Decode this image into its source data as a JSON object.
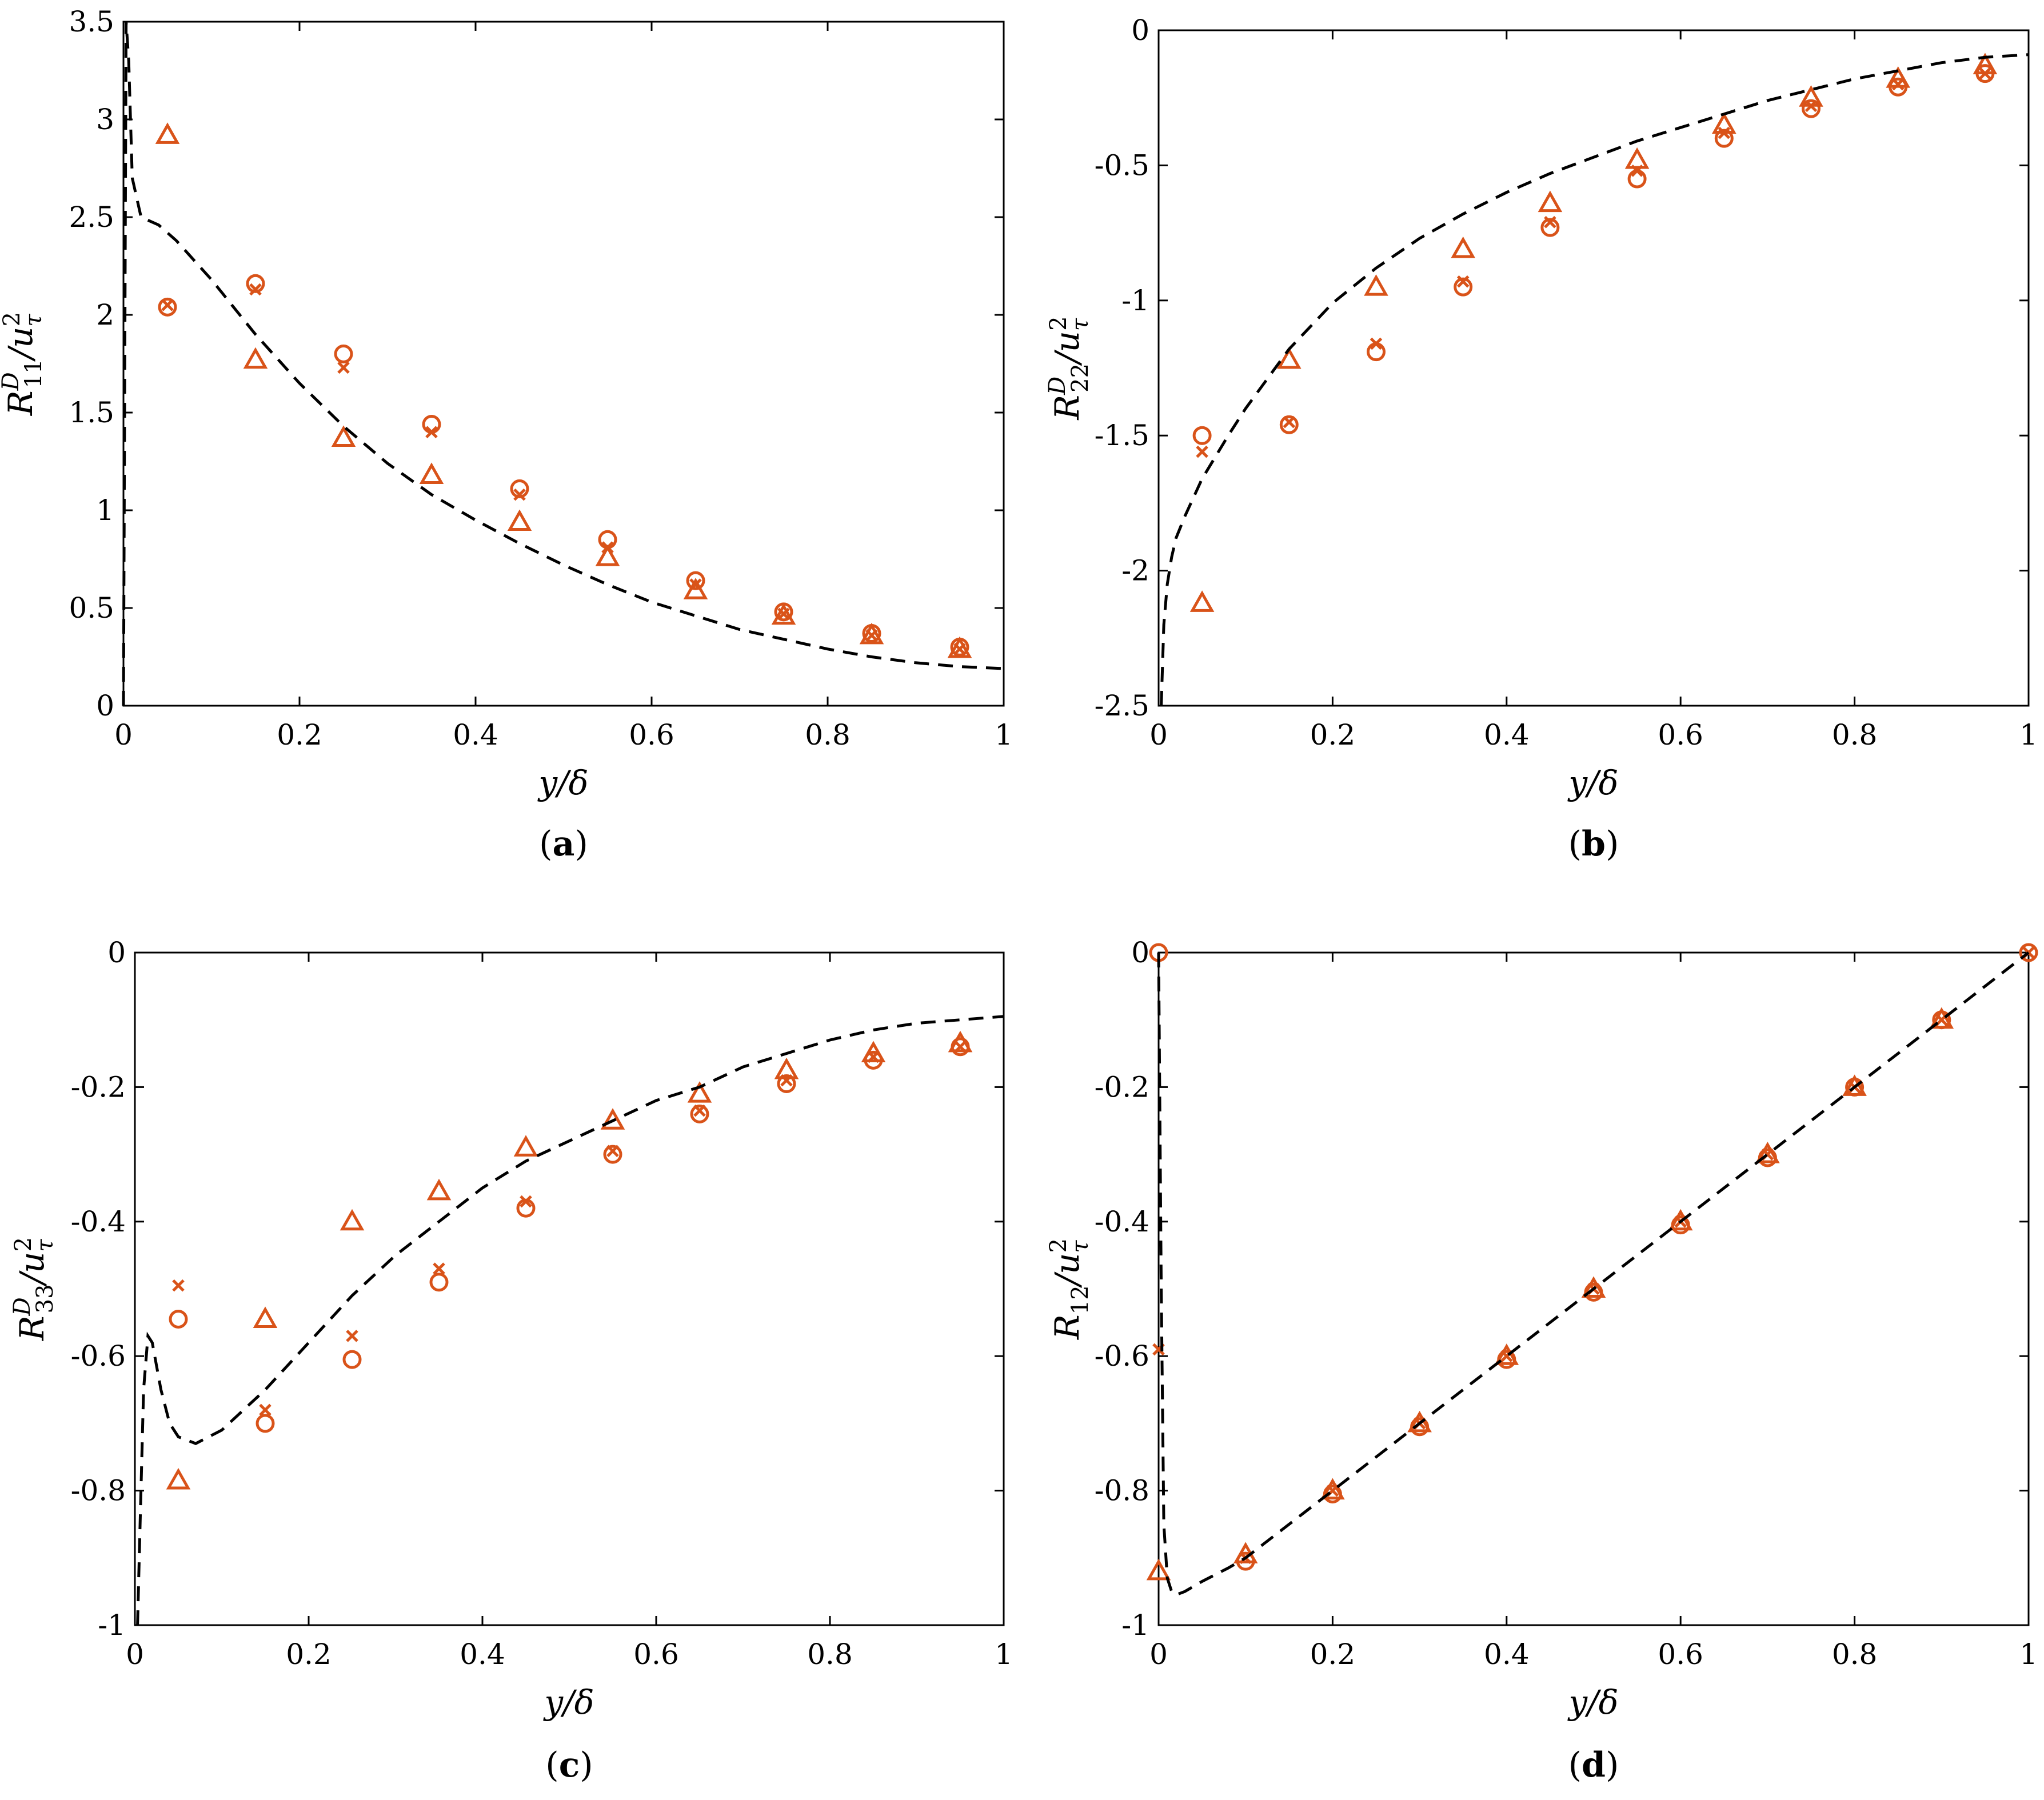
{
  "marker_color": "#d95319",
  "line_color": "#000000",
  "chart_data": [
    {
      "type": "scatter",
      "panel": "(a)",
      "caption_letter": "a",
      "xlabel": "y/δ",
      "ylabel": "R11D/uτ2",
      "ylabel_parts": {
        "base": "R",
        "sub": "11",
        "sup": "D",
        "den": "/u",
        "den_sub": "τ",
        "den_sup": "2"
      },
      "xlim": [
        0,
        1
      ],
      "ylim": [
        0,
        3.5
      ],
      "xticks": [
        0,
        0.2,
        0.4,
        0.6,
        0.8,
        1
      ],
      "xtick_labels": [
        "0",
        "0.2",
        "0.4",
        "0.6",
        "0.8",
        "1"
      ],
      "yticks": [
        0,
        0.5,
        1,
        1.5,
        2,
        2.5,
        3,
        3.5
      ],
      "ytick_labels": [
        "0",
        "0.5",
        "1",
        "1.5",
        "2",
        "2.5",
        "3",
        "3.5"
      ],
      "series": [
        {
          "name": "circle",
          "marker": "circle",
          "x": [
            0.05,
            0.15,
            0.25,
            0.35,
            0.45,
            0.55,
            0.65,
            0.75,
            0.85,
            0.95
          ],
          "y": [
            2.04,
            2.16,
            1.8,
            1.44,
            1.11,
            0.85,
            0.64,
            0.48,
            0.37,
            0.3
          ]
        },
        {
          "name": "cross",
          "marker": "cross",
          "x": [
            0.05,
            0.15,
            0.25,
            0.35,
            0.45,
            0.55,
            0.65,
            0.75,
            0.85,
            0.95
          ],
          "y": [
            2.05,
            2.13,
            1.73,
            1.4,
            1.08,
            0.81,
            0.62,
            0.47,
            0.36,
            0.29
          ]
        },
        {
          "name": "triangle",
          "marker": "triangle",
          "x": [
            0.05,
            0.15,
            0.25,
            0.35,
            0.45,
            0.55,
            0.65,
            0.75,
            0.85,
            0.95
          ],
          "y": [
            2.92,
            1.77,
            1.37,
            1.18,
            0.94,
            0.76,
            0.59,
            0.46,
            0.36,
            0.29
          ]
        },
        {
          "name": "dashed",
          "marker": "line",
          "x": [
            0,
            0.003,
            0.006,
            0.01,
            0.02,
            0.04,
            0.06,
            0.1,
            0.15,
            0.2,
            0.25,
            0.3,
            0.35,
            0.4,
            0.45,
            0.5,
            0.55,
            0.6,
            0.65,
            0.7,
            0.75,
            0.8,
            0.85,
            0.9,
            0.95,
            1.0
          ],
          "y": [
            0,
            3.5,
            3.3,
            2.7,
            2.5,
            2.46,
            2.38,
            2.18,
            1.9,
            1.65,
            1.43,
            1.24,
            1.08,
            0.95,
            0.83,
            0.72,
            0.62,
            0.53,
            0.46,
            0.39,
            0.34,
            0.29,
            0.25,
            0.22,
            0.2,
            0.19
          ]
        }
      ]
    },
    {
      "type": "scatter",
      "panel": "(b)",
      "caption_letter": "b",
      "xlabel": "y/δ",
      "ylabel": "R22D/uτ2",
      "ylabel_parts": {
        "base": "R",
        "sub": "22",
        "sup": "D",
        "den": "/u",
        "den_sub": "τ",
        "den_sup": "2"
      },
      "xlim": [
        0,
        1
      ],
      "ylim": [
        -2.5,
        0
      ],
      "xticks": [
        0,
        0.2,
        0.4,
        0.6,
        0.8,
        1
      ],
      "xtick_labels": [
        "0",
        "0.2",
        "0.4",
        "0.6",
        "0.8",
        "1"
      ],
      "yticks": [
        -2.5,
        -2,
        -1.5,
        -1,
        -0.5,
        0
      ],
      "ytick_labels": [
        "-2.5",
        "-2",
        "-1.5",
        "-1",
        "-0.5",
        "0"
      ],
      "series": [
        {
          "name": "circle",
          "marker": "circle",
          "x": [
            0.05,
            0.15,
            0.25,
            0.35,
            0.45,
            0.55,
            0.65,
            0.75,
            0.85,
            0.95
          ],
          "y": [
            -1.5,
            -1.46,
            -1.19,
            -0.95,
            -0.73,
            -0.55,
            -0.4,
            -0.29,
            -0.21,
            -0.16
          ]
        },
        {
          "name": "cross",
          "marker": "cross",
          "x": [
            0.05,
            0.15,
            0.25,
            0.35,
            0.45,
            0.55,
            0.65,
            0.75,
            0.85,
            0.95
          ],
          "y": [
            -1.56,
            -1.45,
            -1.16,
            -0.93,
            -0.71,
            -0.52,
            -0.38,
            -0.28,
            -0.2,
            -0.16
          ]
        },
        {
          "name": "triangle",
          "marker": "triangle",
          "x": [
            0.05,
            0.15,
            0.25,
            0.35,
            0.45,
            0.55,
            0.65,
            0.75,
            0.85,
            0.95
          ],
          "y": [
            -2.12,
            -1.22,
            -0.95,
            -0.81,
            -0.64,
            -0.48,
            -0.35,
            -0.25,
            -0.18,
            -0.13
          ]
        },
        {
          "name": "dashed",
          "marker": "line",
          "x": [
            0.003,
            0.006,
            0.01,
            0.015,
            0.02,
            0.03,
            0.05,
            0.08,
            0.1,
            0.15,
            0.2,
            0.25,
            0.3,
            0.35,
            0.4,
            0.45,
            0.5,
            0.55,
            0.6,
            0.65,
            0.7,
            0.75,
            0.8,
            0.85,
            0.9,
            0.95,
            1.0
          ],
          "y": [
            -2.5,
            -2.2,
            -2.05,
            -1.95,
            -1.88,
            -1.8,
            -1.66,
            -1.5,
            -1.4,
            -1.18,
            -1.01,
            -0.88,
            -0.77,
            -0.68,
            -0.6,
            -0.53,
            -0.47,
            -0.41,
            -0.36,
            -0.31,
            -0.26,
            -0.22,
            -0.18,
            -0.15,
            -0.12,
            -0.1,
            -0.09
          ]
        }
      ]
    },
    {
      "type": "scatter",
      "panel": "(c)",
      "caption_letter": "c",
      "xlabel": "y/δ",
      "ylabel": "R33D/uτ2",
      "ylabel_parts": {
        "base": "R",
        "sub": "33",
        "sup": "D",
        "den": "/u",
        "den_sub": "τ",
        "den_sup": "2"
      },
      "xlim": [
        0,
        1
      ],
      "ylim": [
        -1,
        0
      ],
      "xticks": [
        0,
        0.2,
        0.4,
        0.6,
        0.8,
        1
      ],
      "xtick_labels": [
        "0",
        "0.2",
        "0.4",
        "0.6",
        "0.8",
        "1"
      ],
      "yticks": [
        -1,
        -0.8,
        -0.6,
        -0.4,
        -0.2,
        0
      ],
      "ytick_labels": [
        "-1",
        "-0.8",
        "-0.6",
        "-0.4",
        "-0.2",
        "0"
      ],
      "series": [
        {
          "name": "circle",
          "marker": "circle",
          "x": [
            0.05,
            0.15,
            0.25,
            0.35,
            0.45,
            0.55,
            0.65,
            0.75,
            0.85,
            0.95
          ],
          "y": [
            -0.545,
            -0.7,
            -0.605,
            -0.49,
            -0.38,
            -0.3,
            -0.24,
            -0.195,
            -0.16,
            -0.14
          ]
        },
        {
          "name": "cross",
          "marker": "cross",
          "x": [
            0.05,
            0.15,
            0.25,
            0.35,
            0.45,
            0.55,
            0.65,
            0.75,
            0.85,
            0.95
          ],
          "y": [
            -0.495,
            -0.68,
            -0.57,
            -0.47,
            -0.37,
            -0.295,
            -0.235,
            -0.19,
            -0.155,
            -0.14
          ]
        },
        {
          "name": "triangle",
          "marker": "triangle",
          "x": [
            0.05,
            0.15,
            0.25,
            0.35,
            0.45,
            0.55,
            0.65,
            0.75,
            0.85,
            0.95
          ],
          "y": [
            -0.785,
            -0.545,
            -0.4,
            -0.355,
            -0.29,
            -0.25,
            -0.21,
            -0.175,
            -0.15,
            -0.135
          ]
        },
        {
          "name": "dashed",
          "marker": "line",
          "x": [
            0.003,
            0.006,
            0.01,
            0.015,
            0.02,
            0.03,
            0.04,
            0.05,
            0.07,
            0.1,
            0.15,
            0.2,
            0.25,
            0.3,
            0.35,
            0.4,
            0.45,
            0.5,
            0.55,
            0.6,
            0.65,
            0.7,
            0.75,
            0.8,
            0.85,
            0.9,
            0.95,
            1.0
          ],
          "y": [
            -1.0,
            -0.85,
            -0.65,
            -0.57,
            -0.58,
            -0.65,
            -0.7,
            -0.72,
            -0.73,
            -0.71,
            -0.65,
            -0.58,
            -0.51,
            -0.45,
            -0.4,
            -0.35,
            -0.31,
            -0.28,
            -0.25,
            -0.22,
            -0.2,
            -0.17,
            -0.15,
            -0.13,
            -0.115,
            -0.105,
            -0.1,
            -0.095
          ]
        }
      ]
    },
    {
      "type": "scatter",
      "panel": "(d)",
      "caption_letter": "d",
      "xlabel": "y/δ",
      "ylabel": "R12/uτ2",
      "ylabel_parts": {
        "base": "R",
        "sub": "12",
        "sup": "",
        "den": "/u",
        "den_sub": "τ",
        "den_sup": "2"
      },
      "xlim": [
        0,
        1
      ],
      "ylim": [
        -1,
        0
      ],
      "xticks": [
        0,
        0.2,
        0.4,
        0.6,
        0.8,
        1
      ],
      "xtick_labels": [
        "0",
        "0.2",
        "0.4",
        "0.6",
        "0.8",
        "1"
      ],
      "yticks": [
        -1,
        -0.8,
        -0.6,
        -0.4,
        -0.2,
        0
      ],
      "ytick_labels": [
        "-1",
        "-0.8",
        "-0.6",
        "-0.4",
        "-0.2",
        "0"
      ],
      "series": [
        {
          "name": "circle",
          "marker": "circle",
          "x": [
            0.0,
            0.1,
            0.2,
            0.3,
            0.4,
            0.5,
            0.6,
            0.7,
            0.8,
            0.9,
            1.0
          ],
          "y": [
            0.0,
            -0.905,
            -0.805,
            -0.705,
            -0.605,
            -0.505,
            -0.405,
            -0.305,
            -0.2,
            -0.1,
            0.0
          ]
        },
        {
          "name": "cross",
          "marker": "cross",
          "x": [
            0.0,
            0.1,
            0.2,
            0.3,
            0.4,
            0.5,
            0.6,
            0.7,
            0.8,
            0.9,
            1.0
          ],
          "y": [
            -0.59,
            -0.9,
            -0.8,
            -0.7,
            -0.6,
            -0.5,
            -0.4,
            -0.3,
            -0.2,
            -0.1,
            0.0
          ]
        },
        {
          "name": "triangle",
          "marker": "triangle",
          "x": [
            0.0,
            0.1,
            0.2,
            0.3,
            0.4,
            0.5,
            0.6,
            0.7,
            0.8,
            0.9
          ],
          "y": [
            -0.92,
            -0.895,
            -0.8,
            -0.7,
            -0.6,
            -0.5,
            -0.4,
            -0.3,
            -0.2,
            -0.1
          ]
        },
        {
          "name": "dashed",
          "marker": "line",
          "x": [
            0.0,
            0.003,
            0.006,
            0.01,
            0.015,
            0.02,
            0.03,
            0.05,
            0.08,
            0.1,
            0.2,
            0.3,
            0.4,
            0.5,
            0.6,
            0.7,
            0.8,
            0.9,
            1.0
          ],
          "y": [
            0.0,
            -0.5,
            -0.85,
            -0.93,
            -0.95,
            -0.955,
            -0.95,
            -0.935,
            -0.915,
            -0.9,
            -0.8,
            -0.7,
            -0.6,
            -0.5,
            -0.4,
            -0.3,
            -0.2,
            -0.1,
            0.0
          ]
        }
      ]
    }
  ]
}
